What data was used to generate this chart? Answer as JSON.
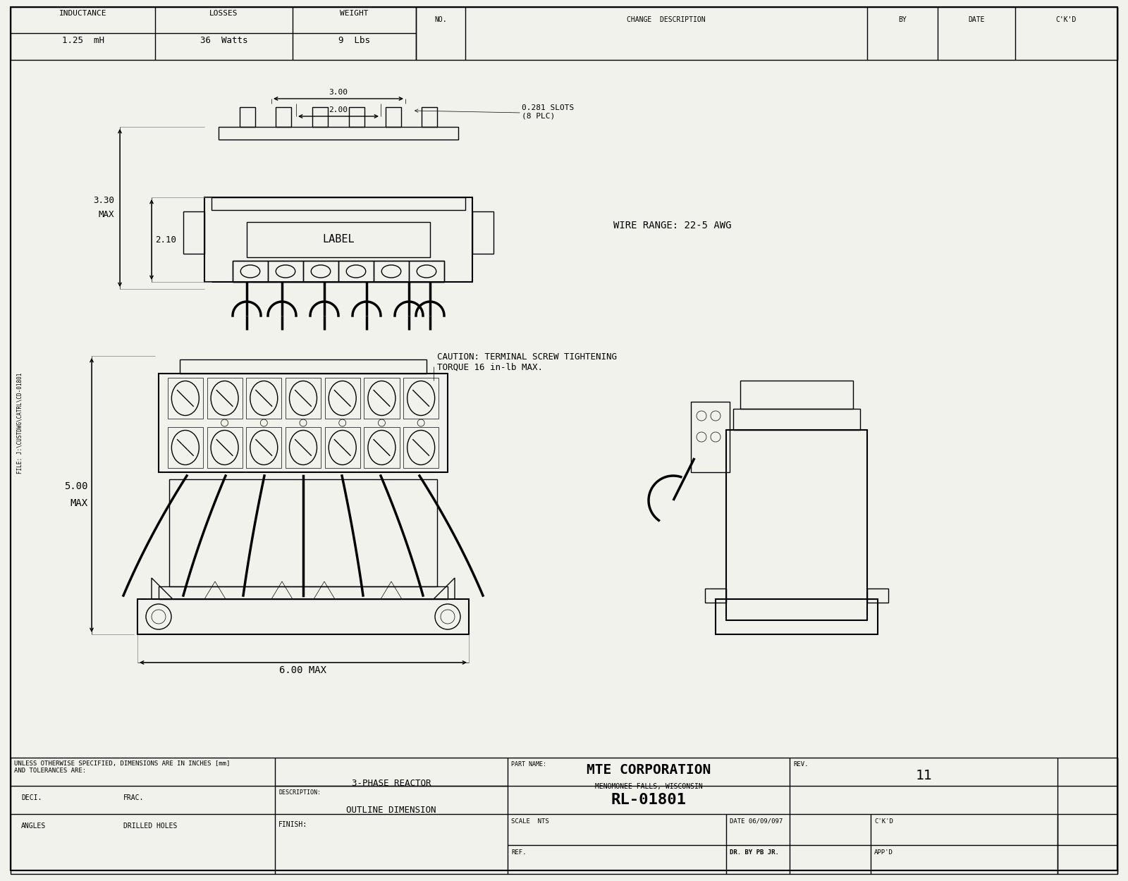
{
  "bg_color": "#f2f2ec",
  "line_color": "#000000",
  "title_text": "MTE CORPORATION",
  "subtitle_text": "MENOMONEE FALLS, WISCONSIN",
  "part_number": "RL-01801",
  "part_name": "3-PHASE REACTOR",
  "description": "OUTLINE DIMENSION",
  "inductance_label": "INDUCTANCE",
  "inductance_val": "1.25  mH",
  "losses_label": "LOSSES",
  "losses_val": "36  Watts",
  "weight_label": "WEIGHT",
  "weight_val": "9  Lbs",
  "no_label": "NO.",
  "change_desc_label": "CHANGE  DESCRIPTION",
  "by_label": "BY",
  "date_label": "DATE",
  "ckd_label": "C'K'D",
  "dim_300": "3.00",
  "dim_200": "2.00",
  "slots_text": "0.281 SLOTS\n(8 PLC)",
  "dim_330": "3.30",
  "dim_max": "MAX",
  "dim_210": "2.10",
  "wire_range": "WIRE RANGE: 22-5 AWG",
  "caution_text": "CAUTION: TERMINAL SCREW TIGHTENING\nTORQUE 16 in-lb MAX.",
  "dim_500": "5.00",
  "dim_600": "6.00 MAX",
  "unless_text": "UNLESS OTHERWISE SPECIFIED, DIMENSIONS ARE IN INCHES [mm]\nAND TOLERANCES ARE:",
  "deci_label": "DECI.",
  "frac_label": "FRAC.",
  "angles_label": "ANGLES",
  "drilled_label": "DRILLED HOLES",
  "finish_label": "FINISH:",
  "file_text": "FILE: J:\\CUSTDWG\\CATRL\\CD-01801",
  "label_text": "LABEL",
  "rev_label": "REV.",
  "rev_num": "11",
  "scale_text": "SCALE  NTS",
  "date_text": "DATE 06/09/097",
  "ckd2_text": "C'K'D",
  "ref_text": "REF.",
  "drby_text": "DR. BY PB JR.",
  "appd_text": "APP'D",
  "part_name_label": "PART NAME:",
  "desc_label": "DESCRIPTION:"
}
